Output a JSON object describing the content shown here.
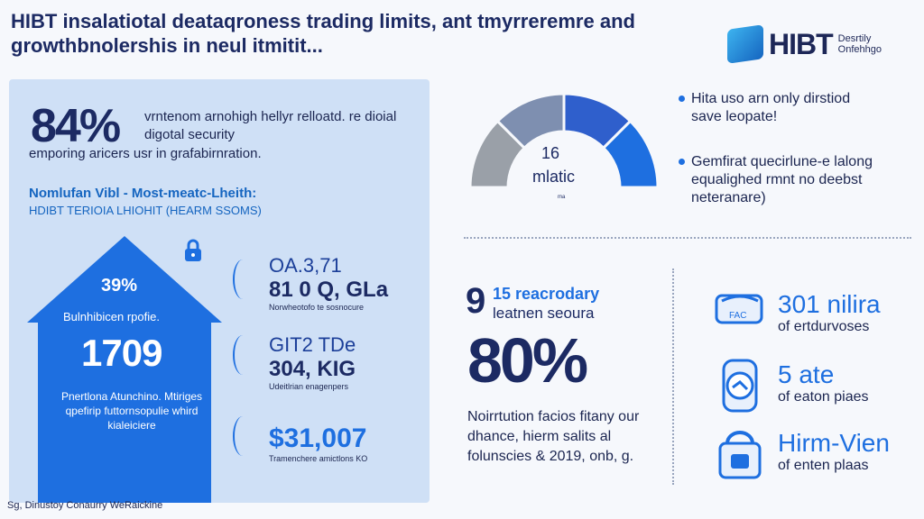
{
  "title": "HIBT insalatiotal deataqroness trading limits, ant tmyrreremre and growthbnolershis in neul itmitit...",
  "logo": {
    "name": "HIBT",
    "tagline": "Desrtily Onfehhgo"
  },
  "left": {
    "big_pct": "84%",
    "big_text_a": "vrntenom arnohigh hellyr relloatd. re dioial digotal security",
    "big_text_b": "emporing aricers usr in grafabirnration.",
    "sub_heading": "Nomlufan Vibl - Most-meatc-Lheith:",
    "sub_heading2": "HDIBT TERIOIA LHIOHIT (HEARM SSOMS)",
    "house": {
      "pct": "39%",
      "label1": "Bulnhibicen rpofie.",
      "big": "1709",
      "label2": "Pnertlona Atunchino. Mtiriges qpefirip futtornsopulie whird kialeiciere"
    },
    "stats": [
      {
        "l1": "OA.3,71",
        "l2": "81 0 Q, GLa",
        "l3": "Norwheotofo te sosnocure"
      },
      {
        "l1": "GIT2 TDe",
        "l2": "304, KIG",
        "l3": "Udeitlrian enagenpers"
      },
      {
        "l1": "",
        "l2": "$31,007",
        "l3": "Tramenchere amictlons KO"
      }
    ]
  },
  "gauge": {
    "num": "16",
    "label": "mlatic",
    "tiny": "ma"
  },
  "bullets": [
    "Hita uso arn only dirstiod save leopate!",
    "Gemfirat quecirlune-e lalong equalighed rmnt no deebst neteranare)"
  ],
  "middle": {
    "num9": "9",
    "line1": "15 reacrodary",
    "line2": "leatnen seoura",
    "big_pct": "80%",
    "text": "Noirrtution facios fitany our dhance, hierm salits al folunscies & 2019, onb, g."
  },
  "right_stats": [
    {
      "a": "301 nilira",
      "b": "of ertdurvoses",
      "icon_label": "FAC"
    },
    {
      "a": "5 ate",
      "b": "of eaton piaes",
      "icon_label": ""
    },
    {
      "a": "Hirm-Vien",
      "b": "of enten plaas",
      "icon_label": ""
    }
  ],
  "footer": "Sg, Dinustoy Conaurry WeRaickine",
  "colors": {
    "accent": "#1e6fe0",
    "navy": "#1c2a63",
    "panel": "#cfe0f6"
  },
  "gauge_segments": [
    {
      "color": "#9aa0a8"
    },
    {
      "color": "#7e8fb0"
    },
    {
      "color": "#2f5fcc"
    },
    {
      "color": "#1e6fe0"
    }
  ]
}
